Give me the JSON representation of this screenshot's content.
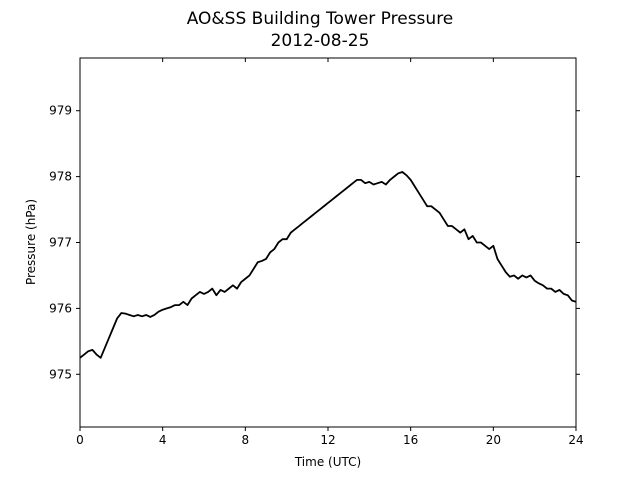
{
  "chart_data": {
    "type": "line",
    "title": "AO&SS Building Tower Pressure",
    "subtitle": "2012-08-25",
    "xlabel": "Time (UTC)",
    "ylabel": "Pressure (hPa)",
    "xlim": [
      0,
      24
    ],
    "ylim": [
      974.2,
      979.8
    ],
    "xticks": [
      0,
      4,
      8,
      12,
      16,
      20,
      24
    ],
    "yticks": [
      975,
      976,
      977,
      978,
      979
    ],
    "grid": false,
    "line_color": "#000000",
    "series": [
      {
        "x": [
          0,
          0.2,
          0.4,
          0.6,
          0.8,
          1.0,
          1.2,
          1.4,
          1.6,
          1.8,
          2.0,
          2.2,
          2.4,
          2.6,
          2.8,
          3.0,
          3.2,
          3.4,
          3.6,
          3.8,
          4.0,
          4.2,
          4.4,
          4.6,
          4.8,
          5.0,
          5.2,
          5.4,
          5.6,
          5.8,
          6.0,
          6.2,
          6.4,
          6.6,
          6.8,
          7.0,
          7.2,
          7.4,
          7.6,
          7.8,
          8.0,
          8.2,
          8.4,
          8.6,
          8.8,
          9.0,
          9.2,
          9.4,
          9.6,
          9.8,
          10.0,
          10.2,
          10.4,
          10.6,
          10.8,
          11.0,
          11.2,
          11.4,
          11.6,
          11.8,
          12.0,
          12.2,
          12.4,
          12.6,
          12.8,
          13.0,
          13.2,
          13.4,
          13.6,
          13.8,
          14.0,
          14.2,
          14.4,
          14.6,
          14.8,
          15.0,
          15.2,
          15.4,
          15.6,
          15.8,
          16.0,
          16.2,
          16.4,
          16.6,
          16.8,
          17.0,
          17.2,
          17.4,
          17.6,
          17.8,
          18.0,
          18.2,
          18.4,
          18.6,
          18.8,
          19.0,
          19.2,
          19.4,
          19.6,
          19.8,
          20.0,
          20.2,
          20.4,
          20.6,
          20.8,
          21.0,
          21.2,
          21.4,
          21.6,
          21.8,
          22.0,
          22.2,
          22.4,
          22.6,
          22.8,
          23.0,
          23.2,
          23.4,
          23.6,
          23.8,
          24.0
        ],
        "y": [
          975.25,
          975.3,
          975.35,
          975.37,
          975.3,
          975.25,
          975.4,
          975.55,
          975.7,
          975.85,
          975.93,
          975.92,
          975.9,
          975.88,
          975.9,
          975.88,
          975.9,
          975.87,
          975.9,
          975.95,
          975.98,
          976.0,
          976.02,
          976.05,
          976.05,
          976.1,
          976.05,
          976.15,
          976.2,
          976.25,
          976.22,
          976.25,
          976.3,
          976.2,
          976.28,
          976.25,
          976.3,
          976.35,
          976.3,
          976.4,
          976.45,
          976.5,
          976.6,
          976.7,
          976.72,
          976.75,
          976.85,
          976.9,
          977.0,
          977.05,
          977.05,
          977.15,
          977.2,
          977.25,
          977.3,
          977.35,
          977.4,
          977.45,
          977.5,
          977.55,
          977.6,
          977.65,
          977.7,
          977.75,
          977.8,
          977.85,
          977.9,
          977.95,
          977.95,
          977.9,
          977.92,
          977.88,
          977.9,
          977.92,
          977.88,
          977.95,
          978.0,
          978.05,
          978.07,
          978.02,
          977.95,
          977.85,
          977.75,
          977.65,
          977.55,
          977.55,
          977.5,
          977.45,
          977.35,
          977.25,
          977.25,
          977.2,
          977.15,
          977.2,
          977.05,
          977.1,
          977.0,
          977.0,
          976.95,
          976.9,
          976.95,
          976.75,
          976.65,
          976.55,
          976.48,
          976.5,
          976.45,
          976.5,
          976.47,
          976.5,
          976.42,
          976.38,
          976.35,
          976.3,
          976.3,
          976.25,
          976.28,
          976.22,
          976.2,
          976.12,
          976.1
        ]
      }
    ]
  }
}
